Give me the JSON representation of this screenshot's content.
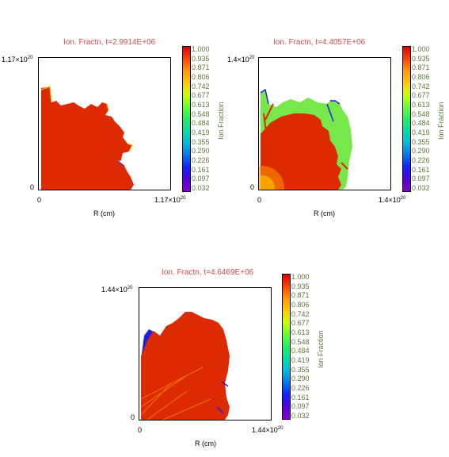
{
  "chart_data": [
    {
      "type": "heatmap",
      "title": "Ion. Fractn, t=2.9914E+06",
      "xlabel": "R (cm)",
      "ylabel": "",
      "x_ticks": [
        {
          "base": "0",
          "exp": ""
        },
        {
          "base": "1.17×10",
          "exp": "20"
        }
      ],
      "y_ticks": [
        {
          "base": "0",
          "exp": ""
        },
        {
          "base": "1.17×10",
          "exp": "20"
        }
      ],
      "xlim": [
        0,
        1.17e+20
      ],
      "ylim": [
        0,
        1.17e+20
      ],
      "colorbar_label": "Ion Fraction",
      "colorbar_ticks": [
        "1.000",
        "0.935",
        "0.871",
        "0.806",
        "0.742",
        "0.677",
        "0.613",
        "0.548",
        "0.484",
        "0.419",
        "0.355",
        "0.290",
        "0.226",
        "0.161",
        "0.097",
        "0.032"
      ],
      "colorbar_range": [
        0.032,
        1.0
      ]
    },
    {
      "type": "heatmap",
      "title": "Ion. Fractn, t=4.4057E+06",
      "xlabel": "R (cm)",
      "ylabel": "",
      "x_ticks": [
        {
          "base": "0",
          "exp": ""
        },
        {
          "base": "1.4×10",
          "exp": "20"
        }
      ],
      "y_ticks": [
        {
          "base": "0",
          "exp": ""
        },
        {
          "base": "1.4×10",
          "exp": "20"
        }
      ],
      "xlim": [
        0,
        1.4e+20
      ],
      "ylim": [
        0,
        1.4e+20
      ],
      "colorbar_label": "Ion Fraction",
      "colorbar_ticks": [
        "1.000",
        "0.935",
        "0.871",
        "0.806",
        "0.742",
        "0.677",
        "0.613",
        "0.548",
        "0.484",
        "0.419",
        "0.355",
        "0.290",
        "0.226",
        "0.161",
        "0.097",
        "0.032"
      ],
      "colorbar_range": [
        0.032,
        1.0
      ]
    },
    {
      "type": "heatmap",
      "title": "Ion. Fractn, t=4.6469E+06",
      "xlabel": "R (cm)",
      "ylabel": "",
      "x_ticks": [
        {
          "base": "0",
          "exp": ""
        },
        {
          "base": "1.44×10",
          "exp": "20"
        }
      ],
      "y_ticks": [
        {
          "base": "0",
          "exp": ""
        },
        {
          "base": "1.44×10",
          "exp": "20"
        }
      ],
      "xlim": [
        0,
        1.44e+20
      ],
      "ylim": [
        0,
        1.44e+20
      ],
      "colorbar_label": "Ion Fraction",
      "colorbar_ticks": [
        "1.000",
        "0.935",
        "0.871",
        "0.806",
        "0.742",
        "0.677",
        "0.613",
        "0.548",
        "0.484",
        "0.419",
        "0.355",
        "0.290",
        "0.226",
        "0.161",
        "0.097",
        "0.032"
      ],
      "colorbar_range": [
        0.032,
        1.0
      ]
    }
  ],
  "colors": {
    "title": "#d94a4a",
    "colorbar_text": "#5a7a3a",
    "ionized": "#dd2a00",
    "partial": "#77e84a",
    "neutral": "#2020e0",
    "colormap": [
      "#dd0000",
      "#ff4400",
      "#ff9900",
      "#ffcc00",
      "#ccff00",
      "#66ff33",
      "#22ee66",
      "#00ddaa",
      "#00bbdd",
      "#0077ee",
      "#1122ff",
      "#5500dd",
      "#8800cc"
    ]
  }
}
